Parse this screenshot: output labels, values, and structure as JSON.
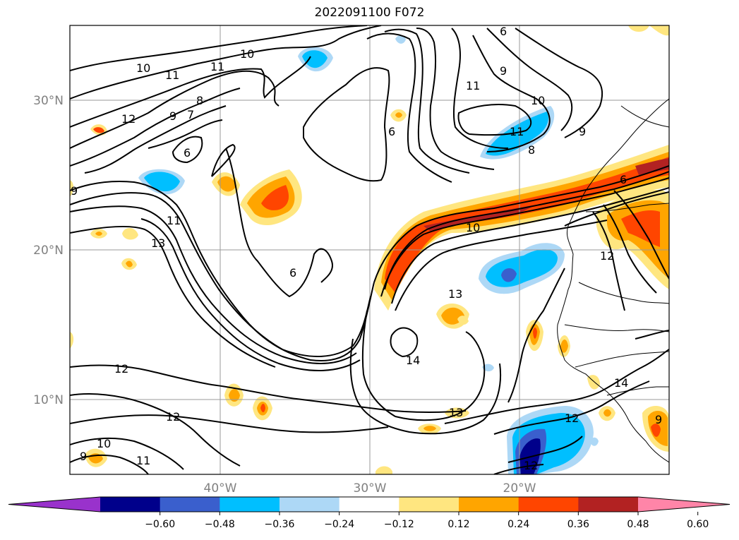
{
  "title": "2022091100 F072",
  "map": {
    "lat_labels": [
      "30°N",
      "20°N",
      "10°N"
    ],
    "lon_labels": [
      "40°W",
      "30°W",
      "20°W"
    ],
    "contour_labels": [
      "10",
      "11",
      "11",
      "10",
      "9",
      "7",
      "8",
      "12",
      "6",
      "6",
      "6",
      "11",
      "9",
      "10",
      "11",
      "8",
      "9",
      "6",
      "11",
      "13",
      "6",
      "10",
      "12",
      "13",
      "14",
      "12",
      "12",
      "10",
      "11",
      "9",
      "13",
      "12",
      "14",
      "12",
      "9",
      "9"
    ]
  },
  "colorbar": {
    "colors": [
      "#9932CC",
      "#00008B",
      "#3A5FCD",
      "#00BFFF",
      "#ADD8F6",
      "#FFFFFF",
      "#FFE680",
      "#FFA500",
      "#FF4500",
      "#B22222",
      "#FF85A8"
    ],
    "tick_labels": [
      "−0.60",
      "−0.48",
      "−0.36",
      "−0.24",
      "−0.12",
      "0.12",
      "0.24",
      "0.36",
      "0.48",
      "0.60"
    ],
    "ticks": [
      -0.6,
      -0.48,
      -0.36,
      -0.24,
      -0.12,
      0.12,
      0.24,
      0.36,
      0.48,
      0.6
    ]
  }
}
